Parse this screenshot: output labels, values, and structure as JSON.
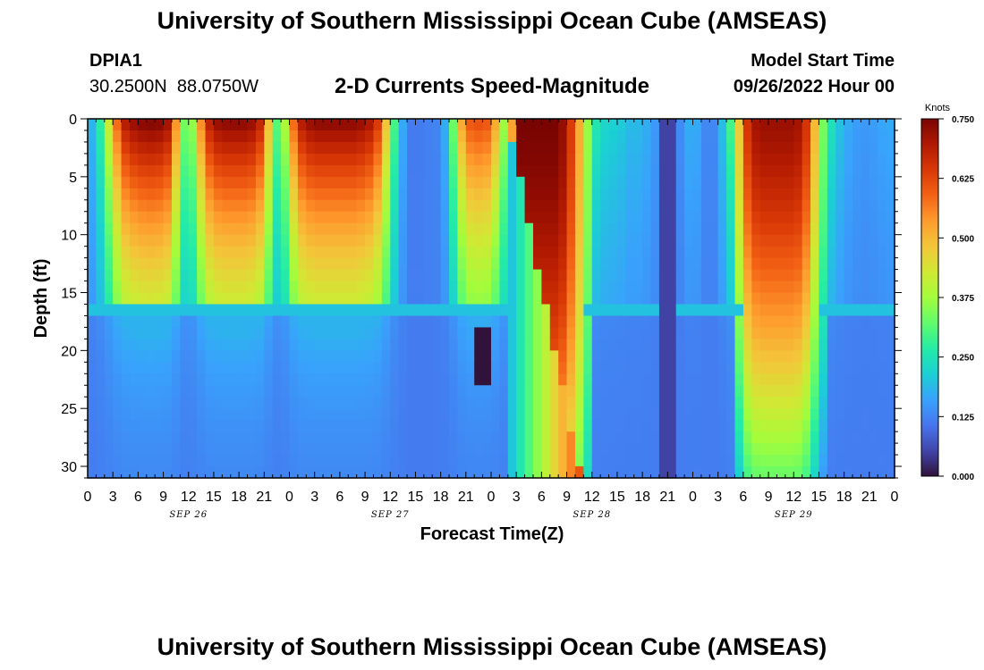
{
  "header": {
    "title": "University of Southern Mississippi Ocean Cube (AMSEAS)",
    "station_id": "DPIA1",
    "station_coords": "30.2500N  88.0750W",
    "subtitle": "2-D Currents Speed-Magnitude",
    "model_start_label": "Model Start Time",
    "model_start_value": "09/26/2022 Hour 00"
  },
  "footer": {
    "title_repeat": "University of Southern Mississippi Ocean Cube (AMSEAS)"
  },
  "colors": {
    "ramp": [
      "#30123b",
      "#4145ab",
      "#4675ed",
      "#39a2fc",
      "#1bcfd4",
      "#24eca6",
      "#61fc6c",
      "#a4fc3b",
      "#d1e834",
      "#f3c63a",
      "#fe9b2d",
      "#f36315",
      "#d93806",
      "#b11901",
      "#7a0402"
    ]
  },
  "chart_data": {
    "type": "heatmap",
    "xlabel": "Forecast Time(Z)",
    "ylabel": "Depth (ft)",
    "x_unit": "hours from 09/26/2022 00Z",
    "x_range": [
      0,
      96
    ],
    "y_range": [
      0,
      31
    ],
    "x_ticks": [
      {
        "h": 0,
        "label": "0"
      },
      {
        "h": 3,
        "label": "3"
      },
      {
        "h": 6,
        "label": "6"
      },
      {
        "h": 9,
        "label": "9"
      },
      {
        "h": 12,
        "label": "12"
      },
      {
        "h": 15,
        "label": "15"
      },
      {
        "h": 18,
        "label": "18"
      },
      {
        "h": 21,
        "label": "21"
      },
      {
        "h": 24,
        "label": "0"
      },
      {
        "h": 27,
        "label": "3"
      },
      {
        "h": 30,
        "label": "6"
      },
      {
        "h": 33,
        "label": "9"
      },
      {
        "h": 36,
        "label": "12"
      },
      {
        "h": 39,
        "label": "15"
      },
      {
        "h": 42,
        "label": "18"
      },
      {
        "h": 45,
        "label": "21"
      },
      {
        "h": 48,
        "label": "0"
      },
      {
        "h": 51,
        "label": "3"
      },
      {
        "h": 54,
        "label": "6"
      },
      {
        "h": 57,
        "label": "9"
      },
      {
        "h": 60,
        "label": "12"
      },
      {
        "h": 63,
        "label": "15"
      },
      {
        "h": 66,
        "label": "18"
      },
      {
        "h": 69,
        "label": "21"
      },
      {
        "h": 72,
        "label": "0"
      },
      {
        "h": 75,
        "label": "3"
      },
      {
        "h": 78,
        "label": "6"
      },
      {
        "h": 81,
        "label": "9"
      },
      {
        "h": 84,
        "label": "12"
      },
      {
        "h": 87,
        "label": "15"
      },
      {
        "h": 90,
        "label": "18"
      },
      {
        "h": 93,
        "label": "21"
      },
      {
        "h": 96,
        "label": "0"
      }
    ],
    "date_labels": [
      {
        "h": 12,
        "label": "SEP 26"
      },
      {
        "h": 36,
        "label": "SEP 27"
      },
      {
        "h": 60,
        "label": "SEP 28"
      },
      {
        "h": 84,
        "label": "SEP 29"
      }
    ],
    "y_ticks": [
      0,
      5,
      10,
      15,
      20,
      25,
      30
    ],
    "colorbar": {
      "title": "Knots",
      "min": 0.0,
      "max": 0.75,
      "tick_values": [
        0.0,
        0.125,
        0.25,
        0.375,
        0.5,
        0.625,
        0.75
      ],
      "tick_labels": [
        "0.000",
        "0.125",
        "0.250",
        "0.375",
        "0.500",
        "0.625",
        "0.750"
      ]
    },
    "surface_speed_by_hour": [
      [
        0,
        0.17
      ],
      [
        1,
        0.2
      ],
      [
        2,
        0.35
      ],
      [
        3,
        0.5
      ],
      [
        4,
        0.68
      ],
      [
        5,
        0.72
      ],
      [
        6,
        0.74
      ],
      [
        7,
        0.75
      ],
      [
        8,
        0.75
      ],
      [
        9,
        0.74
      ],
      [
        10,
        0.7
      ],
      [
        11,
        0.4
      ],
      [
        12,
        0.28
      ],
      [
        13,
        0.45
      ],
      [
        14,
        0.66
      ],
      [
        15,
        0.72
      ],
      [
        16,
        0.74
      ],
      [
        17,
        0.74
      ],
      [
        18,
        0.74
      ],
      [
        19,
        0.74
      ],
      [
        20,
        0.72
      ],
      [
        21,
        0.65
      ],
      [
        22,
        0.35
      ],
      [
        23,
        0.28
      ],
      [
        24,
        0.5
      ],
      [
        25,
        0.68
      ],
      [
        26,
        0.72
      ],
      [
        27,
        0.74
      ],
      [
        28,
        0.74
      ],
      [
        29,
        0.74
      ],
      [
        30,
        0.74
      ],
      [
        31,
        0.74
      ],
      [
        32,
        0.74
      ],
      [
        33,
        0.72
      ],
      [
        34,
        0.7
      ],
      [
        35,
        0.6
      ],
      [
        36,
        0.38
      ],
      [
        37,
        0.22
      ],
      [
        38,
        0.12
      ],
      [
        39,
        0.11
      ],
      [
        40,
        0.12
      ],
      [
        41,
        0.12
      ],
      [
        42,
        0.13
      ],
      [
        43,
        0.22
      ],
      [
        44,
        0.45
      ],
      [
        45,
        0.6
      ],
      [
        46,
        0.62
      ],
      [
        47,
        0.62
      ],
      [
        48,
        0.6
      ],
      [
        49,
        0.45
      ],
      [
        50,
        0.3
      ],
      [
        51,
        0.75
      ],
      [
        52,
        0.75
      ],
      [
        53,
        0.75
      ],
      [
        54,
        0.75
      ],
      [
        55,
        0.75
      ],
      [
        56,
        0.75
      ],
      [
        57,
        0.7
      ],
      [
        58,
        0.58
      ],
      [
        59,
        0.45
      ],
      [
        60,
        0.28
      ],
      [
        61,
        0.24
      ],
      [
        62,
        0.22
      ],
      [
        63,
        0.22
      ],
      [
        64,
        0.2
      ],
      [
        65,
        0.18
      ],
      [
        66,
        0.2
      ],
      [
        67,
        0.15
      ],
      [
        68,
        0.15
      ],
      [
        69,
        0.1
      ],
      [
        70,
        0.12
      ],
      [
        71,
        0.15
      ],
      [
        72,
        0.2
      ],
      [
        73,
        0.14
      ],
      [
        74,
        0.12
      ],
      [
        75,
        0.14
      ],
      [
        76,
        0.25
      ],
      [
        77,
        0.35
      ],
      [
        78,
        0.6
      ],
      [
        79,
        0.7
      ],
      [
        80,
        0.72
      ],
      [
        81,
        0.72
      ],
      [
        82,
        0.72
      ],
      [
        83,
        0.72
      ],
      [
        84,
        0.72
      ],
      [
        85,
        0.7
      ],
      [
        86,
        0.6
      ],
      [
        87,
        0.4
      ],
      [
        88,
        0.28
      ],
      [
        89,
        0.22
      ],
      [
        90,
        0.18
      ],
      [
        91,
        0.16
      ],
      [
        92,
        0.15
      ],
      [
        93,
        0.15
      ],
      [
        94,
        0.16
      ],
      [
        95,
        0.17
      ],
      [
        96,
        0.17
      ]
    ]
  }
}
